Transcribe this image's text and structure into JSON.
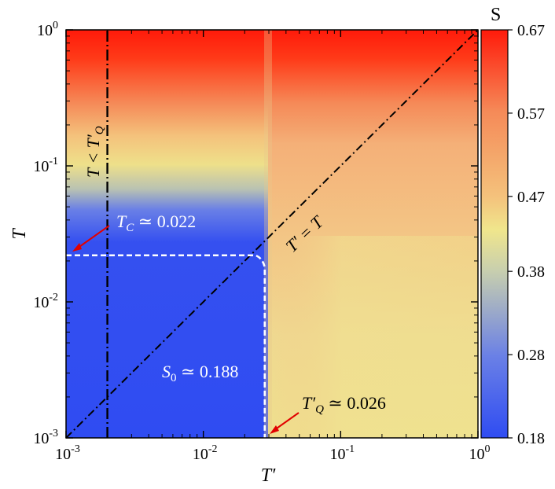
{
  "chart_data": {
    "type": "heatmap",
    "x_label": "T′",
    "y_label": "T",
    "x_scale": "log",
    "y_scale": "log",
    "xlim": [
      0.001,
      1
    ],
    "ylim": [
      0.001,
      1
    ],
    "x_ticks": [
      {
        "value": 0.001,
        "base": "10",
        "exp": "-3"
      },
      {
        "value": 0.01,
        "base": "10",
        "exp": "-2"
      },
      {
        "value": 0.1,
        "base": "10",
        "exp": "-1"
      },
      {
        "value": 1,
        "base": "10",
        "exp": "0"
      }
    ],
    "y_ticks": [
      {
        "value": 0.001,
        "base": "10",
        "exp": "-3"
      },
      {
        "value": 0.01,
        "base": "10",
        "exp": "-2"
      },
      {
        "value": 0.1,
        "base": "10",
        "exp": "-1"
      },
      {
        "value": 1,
        "base": "10",
        "exp": "0"
      }
    ],
    "colorbar": {
      "title": "S",
      "min": 0.18,
      "max": 0.67,
      "ticks": [
        "0.18",
        "0.28",
        "0.38",
        "0.47",
        "0.57",
        "0.67"
      ],
      "stops": [
        {
          "value": 0.18,
          "color": "#2f4cf2"
        },
        {
          "value": 0.28,
          "color": "#6a80e6"
        },
        {
          "value": 0.38,
          "color": "#c8cfae"
        },
        {
          "value": 0.43,
          "color": "#f0e68c"
        },
        {
          "value": 0.47,
          "color": "#f4c27c"
        },
        {
          "value": 0.57,
          "color": "#f58a58"
        },
        {
          "value": 0.67,
          "color": "#ff1a0a"
        }
      ]
    },
    "regions": {
      "low_region_value": 0.188,
      "high_T_value": 0.67,
      "right_region_range": [
        0.43,
        0.5
      ]
    },
    "lines": [
      {
        "name": "T′ = T",
        "style": "dash-dot",
        "x": [
          0.001,
          1
        ],
        "y": [
          0.001,
          1
        ]
      },
      {
        "name": "T < T′_Q",
        "style": "dash-dot",
        "x": [
          0.002,
          0.002
        ],
        "y": [
          0.001,
          1
        ]
      },
      {
        "name": "S₀ boundary",
        "style": "dashed-white",
        "x": [
          0.001,
          0.024,
          0.027,
          0.028,
          0.028
        ],
        "y": [
          0.022,
          0.022,
          0.021,
          0.018,
          0.001
        ]
      }
    ],
    "annotations": {
      "tc": {
        "base": "T",
        "sub": "C",
        "rest": " ≃ 0.022",
        "value": 0.022
      },
      "tq": {
        "base": "T′",
        "sub": "Q",
        "rest": " ≃ 0.026",
        "value": 0.026
      },
      "s0": {
        "base": "S",
        "sub": "0",
        "rest": " ≃ 0.188",
        "value": 0.188
      },
      "diag": "T′ = T",
      "vert": {
        "base": "T < T′",
        "sub": "Q"
      }
    }
  }
}
